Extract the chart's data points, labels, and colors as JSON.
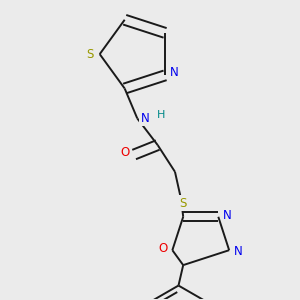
{
  "background_color": "#ebebeb",
  "bond_color": "#1a1a1a",
  "bond_lw": 1.4,
  "dbo": 0.018,
  "atom_colors": {
    "N": "#0000ee",
    "O": "#ee0000",
    "S": "#999900",
    "H": "#008888"
  },
  "font_size": 8.5
}
